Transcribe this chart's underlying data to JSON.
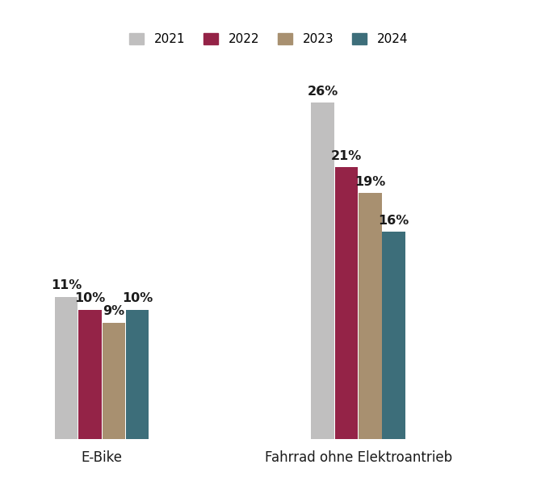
{
  "categories": [
    "E-Bike",
    "Fahrrad ohne Elektroantrieb"
  ],
  "years": [
    "2021",
    "2022",
    "2023",
    "2024"
  ],
  "values": {
    "E-Bike": [
      11,
      10,
      9,
      10
    ],
    "Fahrrad ohne Elektroantrieb": [
      26,
      21,
      19,
      16
    ]
  },
  "colors": [
    "#c0bfbf",
    "#942347",
    "#a89070",
    "#3d6e7a"
  ],
  "bar_width": 0.18,
  "bar_spacing": 0.005,
  "label_fontsize": 11.5,
  "legend_fontsize": 11,
  "cat_label_fontsize": 12,
  "background_color": "#ffffff",
  "text_color": "#1a1a1a",
  "legend_labels": [
    "2021",
    "2022",
    "2023",
    "2024"
  ],
  "group_positions": [
    1,
    3
  ],
  "ylim": [
    0,
    30
  ],
  "xlim": [
    0.3,
    4.3
  ]
}
